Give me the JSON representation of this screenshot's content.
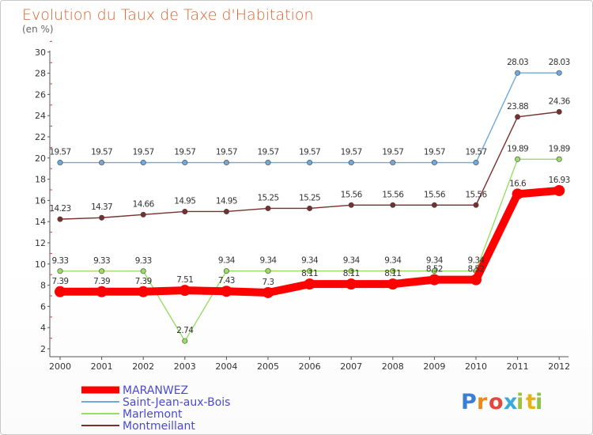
{
  "chart_data": {
    "type": "line",
    "title": "Evolution du Taux de Taxe d'Habitation",
    "subtitle": "(en %)",
    "x": [
      "2000",
      "2001",
      "2002",
      "2003",
      "2004",
      "2005",
      "2006",
      "2007",
      "2008",
      "2009",
      "2010",
      "2011",
      "2012"
    ],
    "ylim": [
      2,
      30
    ],
    "yticks": [
      2,
      4,
      6,
      8,
      10,
      12,
      14,
      16,
      18,
      20,
      22,
      24,
      26,
      28,
      30
    ],
    "grid": false,
    "legend_position": "bottom-left",
    "series": [
      {
        "name": "MARANWEZ",
        "color": "#ff0000",
        "values": [
          7.39,
          7.39,
          7.39,
          7.51,
          7.43,
          7.3,
          8.11,
          8.11,
          8.11,
          8.52,
          8.52,
          16.6,
          16.93
        ],
        "labels": [
          "7.39",
          "7.39",
          "7.39",
          "7.51",
          "7.43",
          "7.3",
          "8.11",
          "8.11",
          "8.11",
          "8.52",
          "8.52",
          "16.6",
          "16.93"
        ]
      },
      {
        "name": "Saint-Jean-aux-Bois",
        "color": "#6fa8dc",
        "values": [
          19.57,
          19.57,
          19.57,
          19.57,
          19.57,
          19.57,
          19.57,
          19.57,
          19.57,
          19.57,
          19.57,
          28.03,
          28.03
        ],
        "labels": [
          "19.57",
          "19.57",
          "19.57",
          "19.57",
          "19.57",
          "19.57",
          "19.57",
          "19.57",
          "19.57",
          "19.57",
          "19.57",
          "28.03",
          "28.03"
        ]
      },
      {
        "name": "Marlemont",
        "color": "#99dd66",
        "values": [
          9.33,
          9.33,
          9.33,
          2.74,
          9.34,
          9.34,
          9.34,
          9.34,
          9.34,
          9.34,
          9.34,
          19.89,
          19.89
        ],
        "labels": [
          "9.33",
          "9.33",
          "9.33",
          "2.74",
          "9.34",
          "9.34",
          "9.34",
          "9.34",
          "9.34",
          "9.34",
          "9.34",
          "19.89",
          "19.89"
        ]
      },
      {
        "name": "Montmeillant",
        "color": "#7a2e2e",
        "values": [
          14.23,
          14.37,
          14.66,
          14.95,
          14.95,
          15.25,
          15.25,
          15.56,
          15.56,
          15.56,
          15.56,
          23.88,
          24.36
        ],
        "labels": [
          "14.23",
          "14.37",
          "14.66",
          "14.95",
          "14.95",
          "15.25",
          "15.25",
          "15.56",
          "15.56",
          "15.56",
          "15.56",
          "23.88",
          "24.36"
        ]
      }
    ]
  },
  "branding": {
    "logo_letters": [
      "P",
      "r",
      "o",
      "x",
      "i",
      "t",
      "i"
    ],
    "logo_colors": [
      "#3a7fd5",
      "#e98a1b",
      "#e04a3c",
      "#3aa9d8",
      "#9ac23c",
      "#e5b21b",
      "#8bc34a"
    ]
  }
}
